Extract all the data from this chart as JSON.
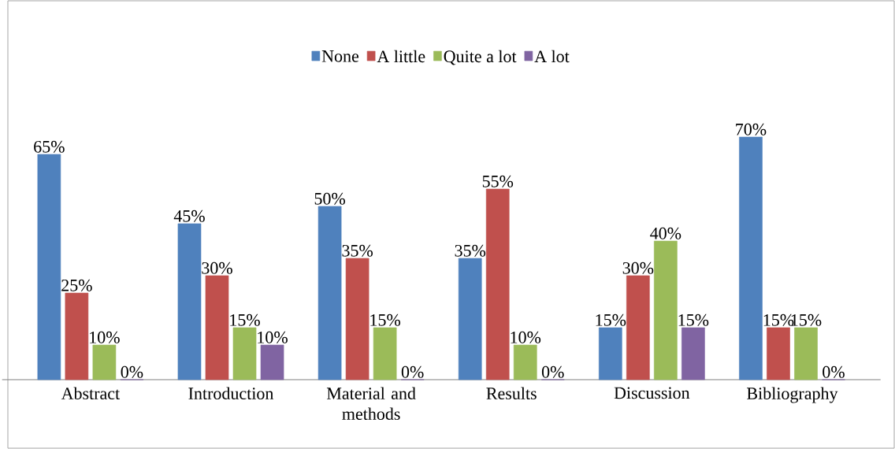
{
  "chart_data": {
    "type": "bar",
    "categories": [
      "Abstract",
      "Introduction",
      "Material and methods",
      "Results",
      "Discussion",
      "Bibliography"
    ],
    "series": [
      {
        "name": "None",
        "color": "#4f81bd",
        "values": [
          65,
          45,
          50,
          35,
          15,
          70
        ],
        "value_labels": [
          "65%",
          "45%",
          "50%",
          "35%",
          "15%",
          "70%"
        ]
      },
      {
        "name": "A little",
        "color": "#c0504d",
        "values": [
          25,
          30,
          35,
          55,
          30,
          15
        ],
        "value_labels": [
          "25%",
          "30%",
          "35%",
          "55%",
          "30%",
          "15%"
        ]
      },
      {
        "name": "Quite a lot",
        "color": "#9bbb59",
        "values": [
          10,
          15,
          15,
          10,
          40,
          15
        ],
        "value_labels": [
          "10%",
          "15%",
          "15%",
          "10%",
          "40%",
          "15%"
        ]
      },
      {
        "name": "A lot",
        "color": "#8064a2",
        "values": [
          0,
          10,
          0,
          0,
          15,
          0
        ],
        "value_labels": [
          "0%",
          "10%",
          "0%",
          "0%",
          "15%",
          "0%"
        ]
      }
    ],
    "legend": "top",
    "grid": false
  }
}
